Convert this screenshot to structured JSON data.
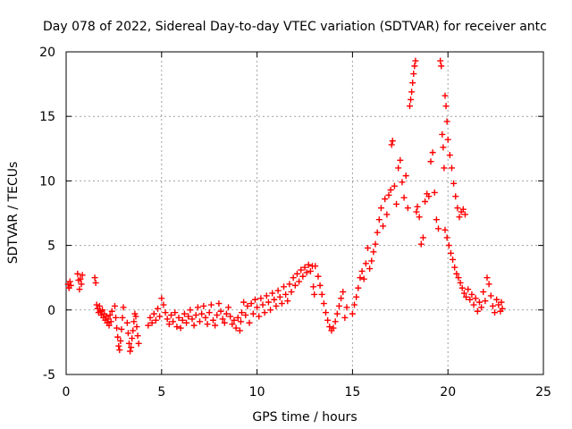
{
  "chart_data": {
    "type": "scatter",
    "title": "Day 078 of 2022, Sidereal Day-to-day VTEC variation (SDTVAR) for receiver antc",
    "xlabel": "GPS time / hours",
    "ylabel": "SDTVAR / TECUs",
    "xlim": [
      0,
      25
    ],
    "ylim": [
      -5,
      20
    ],
    "xticks": [
      0,
      5,
      10,
      15,
      20,
      25
    ],
    "yticks": [
      -5,
      0,
      5,
      10,
      15,
      20
    ],
    "xtick_labels": [
      "0",
      "5",
      "10",
      "15",
      "20",
      "25"
    ],
    "ytick_labels": [
      "-5",
      "0",
      "5",
      "10",
      "15",
      "20"
    ],
    "grid": true,
    "marker": "plus",
    "series": [
      {
        "name": "SDTVAR",
        "color": "#ff0000",
        "points": [
          [
            0.1,
            2.0
          ],
          [
            0.15,
            1.7
          ],
          [
            0.2,
            2.2
          ],
          [
            0.25,
            1.9
          ],
          [
            0.6,
            2.8
          ],
          [
            0.65,
            2.3
          ],
          [
            0.7,
            1.6
          ],
          [
            0.75,
            2.4
          ],
          [
            0.8,
            2.0
          ],
          [
            0.85,
            2.7
          ],
          [
            1.5,
            2.5
          ],
          [
            1.55,
            2.1
          ],
          [
            1.6,
            0.4
          ],
          [
            1.65,
            0.1
          ],
          [
            1.7,
            -0.2
          ],
          [
            1.75,
            0.3
          ],
          [
            1.8,
            -0.1
          ],
          [
            1.85,
            -0.4
          ],
          [
            1.9,
            0.0
          ],
          [
            1.95,
            -0.6
          ],
          [
            2.0,
            -0.3
          ],
          [
            2.05,
            -0.8
          ],
          [
            2.1,
            -0.5
          ],
          [
            2.15,
            -1.0
          ],
          [
            2.2,
            -0.7
          ],
          [
            2.25,
            -1.2
          ],
          [
            2.3,
            -0.4
          ],
          [
            2.35,
            -0.9
          ],
          [
            2.4,
            -0.1
          ],
          [
            2.55,
            0.3
          ],
          [
            2.6,
            -0.6
          ],
          [
            2.65,
            -1.4
          ],
          [
            2.7,
            -2.1
          ],
          [
            2.75,
            -2.8
          ],
          [
            2.8,
            -3.1
          ],
          [
            2.85,
            -2.4
          ],
          [
            2.9,
            -1.5
          ],
          [
            2.95,
            -0.6
          ],
          [
            3.0,
            0.2
          ],
          [
            3.2,
            -1.0
          ],
          [
            3.25,
            -1.8
          ],
          [
            3.3,
            -2.6
          ],
          [
            3.35,
            -3.2
          ],
          [
            3.4,
            -2.9
          ],
          [
            3.45,
            -2.2
          ],
          [
            3.5,
            -1.6
          ],
          [
            3.55,
            -0.9
          ],
          [
            3.6,
            -0.3
          ],
          [
            3.65,
            -0.5
          ],
          [
            3.7,
            -1.3
          ],
          [
            3.75,
            -2.0
          ],
          [
            3.8,
            -2.6
          ],
          [
            4.3,
            -1.2
          ],
          [
            4.4,
            -0.6
          ],
          [
            4.5,
            -1.0
          ],
          [
            4.6,
            -0.3
          ],
          [
            4.7,
            -0.8
          ],
          [
            4.8,
            0.1
          ],
          [
            4.9,
            -0.5
          ],
          [
            5.0,
            0.9
          ],
          [
            5.1,
            0.4
          ],
          [
            5.2,
            -0.2
          ],
          [
            5.3,
            -0.7
          ],
          [
            5.4,
            -1.1
          ],
          [
            5.5,
            -0.4
          ],
          [
            5.6,
            -0.9
          ],
          [
            5.7,
            -0.2
          ],
          [
            5.8,
            -1.3
          ],
          [
            5.9,
            -0.6
          ],
          [
            6.0,
            -1.4
          ],
          [
            6.1,
            -0.8
          ],
          [
            6.2,
            -0.3
          ],
          [
            6.3,
            -1.0
          ],
          [
            6.4,
            -0.5
          ],
          [
            6.5,
            0.0
          ],
          [
            6.6,
            -0.7
          ],
          [
            6.7,
            -1.2
          ],
          [
            6.8,
            -0.4
          ],
          [
            6.9,
            0.2
          ],
          [
            7.0,
            -0.9
          ],
          [
            7.1,
            -0.3
          ],
          [
            7.2,
            0.3
          ],
          [
            7.3,
            -0.6
          ],
          [
            7.4,
            -1.1
          ],
          [
            7.5,
            -0.2
          ],
          [
            7.6,
            0.4
          ],
          [
            7.7,
            -0.8
          ],
          [
            7.8,
            -1.2
          ],
          [
            7.9,
            -0.4
          ],
          [
            8.0,
            0.5
          ],
          [
            8.1,
            -0.1
          ],
          [
            8.2,
            -0.7
          ],
          [
            8.3,
            -1.0
          ],
          [
            8.4,
            -0.3
          ],
          [
            8.5,
            0.2
          ],
          [
            8.6,
            -0.5
          ],
          [
            8.7,
            -1.1
          ],
          [
            8.8,
            -0.8
          ],
          [
            8.9,
            -1.4
          ],
          [
            9.0,
            -0.6
          ],
          [
            9.1,
            -1.6
          ],
          [
            9.15,
            -0.9
          ],
          [
            9.2,
            -0.2
          ],
          [
            9.3,
            0.6
          ],
          [
            9.4,
            -0.4
          ],
          [
            9.5,
            0.3
          ],
          [
            9.6,
            -1.0
          ],
          [
            9.7,
            0.5
          ],
          [
            9.8,
            -0.3
          ],
          [
            9.9,
            0.8
          ],
          [
            10.0,
            0.2
          ],
          [
            10.1,
            -0.5
          ],
          [
            10.2,
            0.9
          ],
          [
            10.3,
            0.4
          ],
          [
            10.4,
            -0.2
          ],
          [
            10.5,
            1.1
          ],
          [
            10.6,
            0.6
          ],
          [
            10.7,
            0.0
          ],
          [
            10.8,
            1.3
          ],
          [
            10.9,
            0.8
          ],
          [
            11.0,
            0.3
          ],
          [
            11.1,
            1.5
          ],
          [
            11.2,
            1.0
          ],
          [
            11.3,
            0.5
          ],
          [
            11.4,
            1.8
          ],
          [
            11.5,
            1.2
          ],
          [
            11.6,
            0.7
          ],
          [
            11.7,
            2.0
          ],
          [
            11.8,
            1.4
          ],
          [
            11.9,
            2.5
          ],
          [
            12.0,
            1.9
          ],
          [
            12.1,
            2.8
          ],
          [
            12.2,
            2.2
          ],
          [
            12.3,
            3.1
          ],
          [
            12.4,
            2.6
          ],
          [
            12.5,
            3.3
          ],
          [
            12.6,
            2.9
          ],
          [
            12.7,
            3.5
          ],
          [
            12.8,
            3.0
          ],
          [
            12.9,
            3.4
          ],
          [
            12.95,
            1.8
          ],
          [
            13.0,
            1.2
          ],
          [
            13.05,
            3.4
          ],
          [
            13.2,
            2.6
          ],
          [
            13.3,
            1.9
          ],
          [
            13.4,
            1.2
          ],
          [
            13.5,
            0.5
          ],
          [
            13.6,
            -0.2
          ],
          [
            13.7,
            -0.8
          ],
          [
            13.8,
            -1.3
          ],
          [
            13.9,
            -1.6
          ],
          [
            14.0,
            -1.4
          ],
          [
            14.1,
            -0.9
          ],
          [
            14.2,
            -0.3
          ],
          [
            14.3,
            0.3
          ],
          [
            14.4,
            0.9
          ],
          [
            14.5,
            1.4
          ],
          [
            14.6,
            -0.6
          ],
          [
            14.7,
            0.2
          ],
          [
            15.0,
            -0.3
          ],
          [
            15.1,
            0.4
          ],
          [
            15.2,
            1.0
          ],
          [
            15.3,
            1.7
          ],
          [
            15.4,
            2.5
          ],
          [
            15.5,
            3.0
          ],
          [
            15.6,
            2.4
          ],
          [
            15.7,
            3.6
          ],
          [
            15.8,
            4.8
          ],
          [
            15.9,
            3.2
          ],
          [
            16.0,
            3.8
          ],
          [
            16.1,
            4.5
          ],
          [
            16.2,
            5.1
          ],
          [
            16.3,
            6.0
          ],
          [
            16.4,
            7.0
          ],
          [
            16.5,
            7.9
          ],
          [
            16.6,
            6.5
          ],
          [
            16.7,
            8.6
          ],
          [
            16.8,
            7.4
          ],
          [
            16.9,
            8.9
          ],
          [
            17.0,
            9.3
          ],
          [
            17.05,
            12.8
          ],
          [
            17.1,
            13.1
          ],
          [
            17.2,
            9.6
          ],
          [
            17.3,
            8.2
          ],
          [
            17.4,
            11.0
          ],
          [
            17.5,
            11.6
          ],
          [
            17.6,
            9.9
          ],
          [
            17.7,
            8.7
          ],
          [
            17.8,
            10.4
          ],
          [
            17.9,
            7.9
          ],
          [
            18.0,
            15.8
          ],
          [
            18.05,
            16.3
          ],
          [
            18.1,
            16.9
          ],
          [
            18.15,
            17.6
          ],
          [
            18.2,
            18.3
          ],
          [
            18.25,
            18.9
          ],
          [
            18.3,
            19.3
          ],
          [
            18.35,
            7.6
          ],
          [
            18.4,
            8.0
          ],
          [
            18.5,
            7.2
          ],
          [
            18.6,
            5.1
          ],
          [
            18.7,
            5.6
          ],
          [
            18.8,
            8.4
          ],
          [
            18.9,
            9.0
          ],
          [
            19.0,
            8.8
          ],
          [
            19.1,
            11.5
          ],
          [
            19.2,
            12.2
          ],
          [
            19.3,
            9.1
          ],
          [
            19.4,
            7.0
          ],
          [
            19.5,
            6.3
          ],
          [
            19.6,
            19.3
          ],
          [
            19.65,
            18.9
          ],
          [
            19.7,
            13.6
          ],
          [
            19.75,
            12.6
          ],
          [
            19.8,
            11.0
          ],
          [
            19.85,
            16.6
          ],
          [
            19.9,
            15.8
          ],
          [
            19.95,
            14.6
          ],
          [
            20.0,
            13.2
          ],
          [
            20.1,
            12.0
          ],
          [
            20.2,
            11.0
          ],
          [
            20.3,
            9.8
          ],
          [
            20.4,
            8.8
          ],
          [
            20.5,
            7.9
          ],
          [
            20.6,
            7.2
          ],
          [
            20.7,
            7.6
          ],
          [
            20.8,
            7.8
          ],
          [
            20.9,
            7.4
          ],
          [
            19.85,
            6.2
          ],
          [
            19.95,
            5.6
          ],
          [
            20.05,
            5.0
          ],
          [
            20.15,
            4.4
          ],
          [
            20.25,
            3.9
          ],
          [
            20.35,
            3.3
          ],
          [
            20.45,
            2.8
          ],
          [
            20.55,
            2.5
          ],
          [
            20.65,
            2.1
          ],
          [
            20.75,
            1.7
          ],
          [
            20.85,
            1.3
          ],
          [
            20.95,
            1.0
          ],
          [
            21.05,
            1.6
          ],
          [
            21.15,
            0.8
          ],
          [
            21.25,
            1.2
          ],
          [
            21.35,
            0.4
          ],
          [
            21.45,
            0.9
          ],
          [
            21.55,
            -0.1
          ],
          [
            21.65,
            0.6
          ],
          [
            21.75,
            0.2
          ],
          [
            21.85,
            1.4
          ],
          [
            21.95,
            0.7
          ],
          [
            22.05,
            2.5
          ],
          [
            22.15,
            2.0
          ],
          [
            22.25,
            1.1
          ],
          [
            22.35,
            0.3
          ],
          [
            22.45,
            -0.2
          ],
          [
            22.55,
            0.8
          ],
          [
            22.65,
            0.4
          ],
          [
            22.75,
            -0.1
          ],
          [
            22.8,
            0.6
          ],
          [
            22.85,
            0.1
          ]
        ]
      }
    ]
  }
}
